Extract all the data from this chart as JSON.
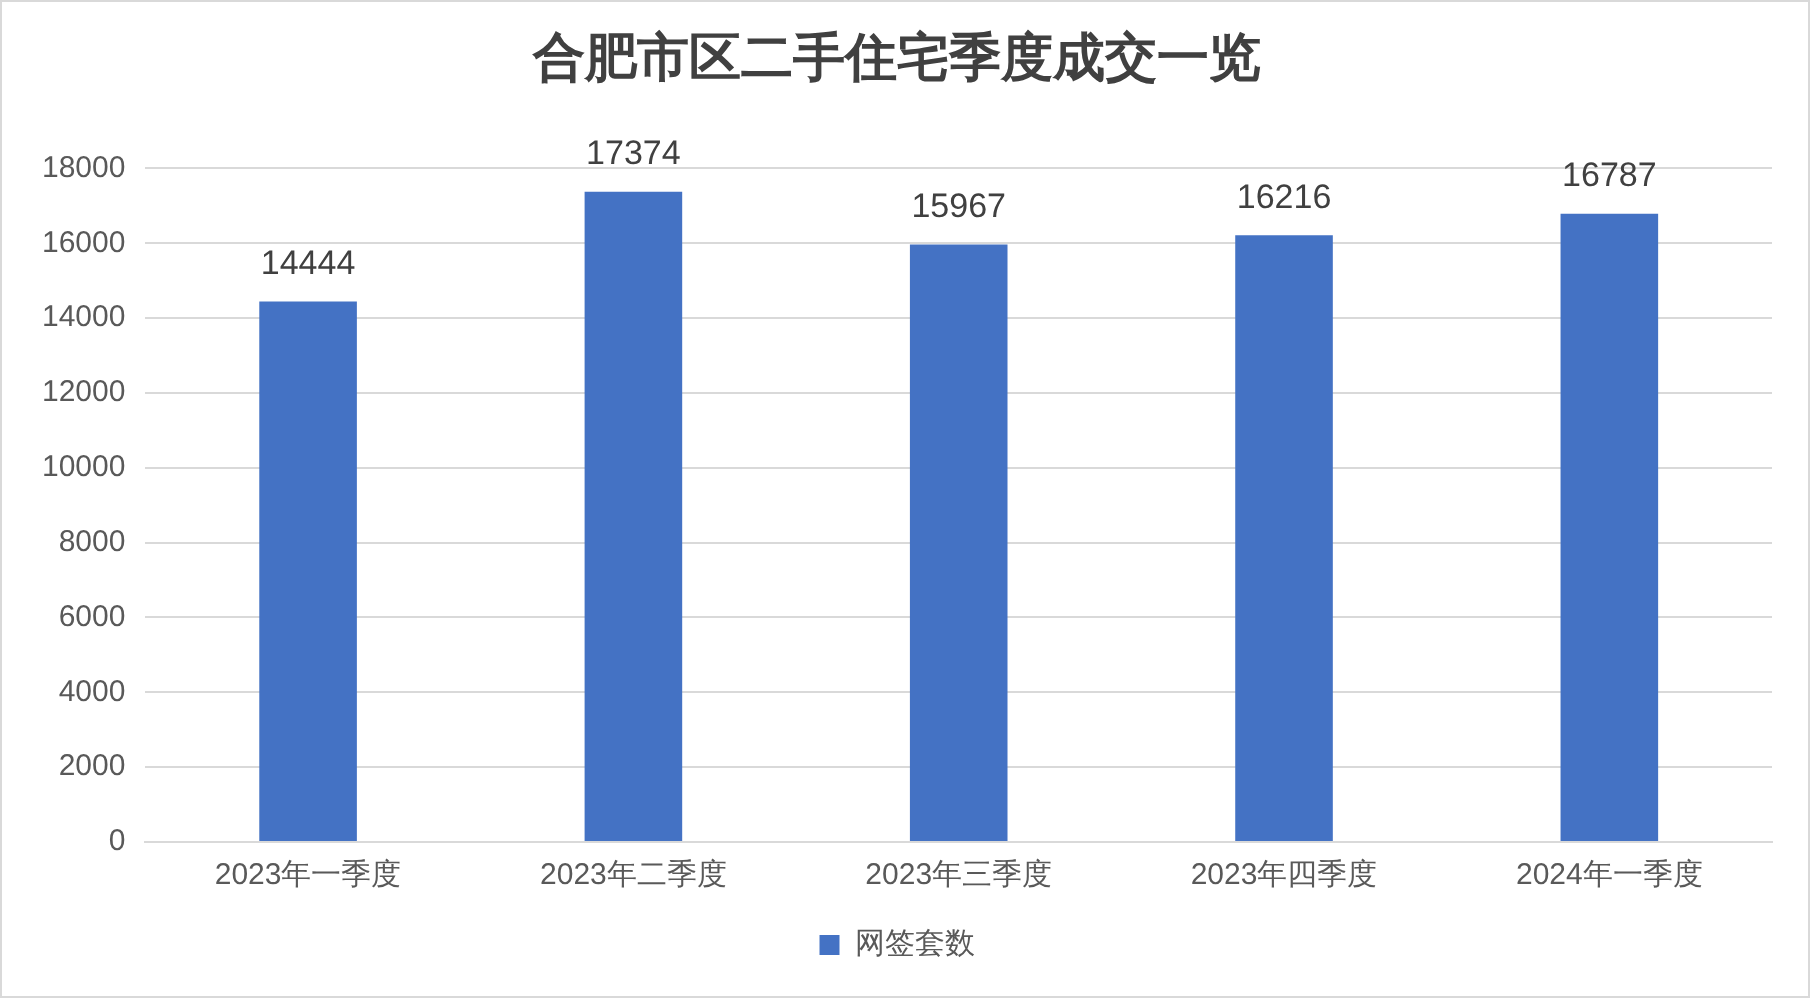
{
  "chart_data": {
    "type": "bar",
    "title": "合肥市区二手住宅季度成交一览",
    "categories": [
      "2023年一季度",
      "2023年二季度",
      "2023年三季度",
      "2023年四季度",
      "2024年一季度"
    ],
    "series": [
      {
        "name": "网签套数",
        "color": "#4472c4",
        "values": [
          14444,
          17374,
          15967,
          16216,
          16787
        ]
      }
    ],
    "ylim": [
      0,
      18000
    ],
    "yticks": [
      0,
      2000,
      4000,
      6000,
      8000,
      10000,
      12000,
      14000,
      16000,
      18000
    ],
    "grid": "y",
    "legend": "bottom",
    "data_labels": true
  }
}
